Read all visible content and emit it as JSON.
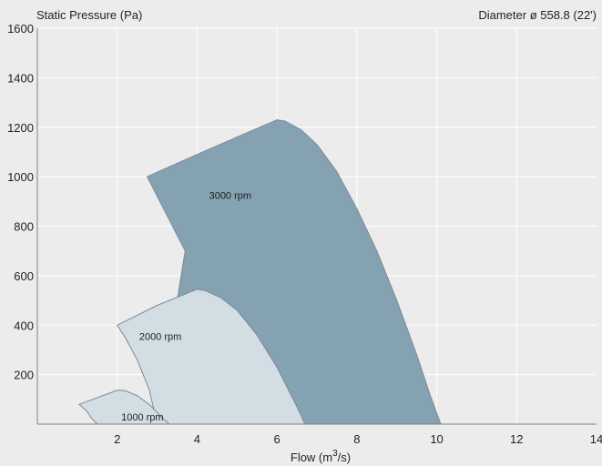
{
  "chart_data": {
    "type": "area",
    "title": "",
    "ylabel": "Static Pressure (Pa)",
    "xlabel_main": "Flow (m",
    "xlabel_sup": "3",
    "xlabel_tail": "/s)",
    "note": "Diameter ø 558.8 (22')",
    "xlim": [
      0,
      14
    ],
    "ylim": [
      0,
      1600
    ],
    "xticks": [
      2,
      4,
      6,
      8,
      10,
      12,
      14
    ],
    "yticks": [
      200,
      400,
      600,
      800,
      1000,
      1200,
      1400,
      1600
    ],
    "grid": true,
    "colors": {
      "background": "#ececec",
      "grid": "#ffffff",
      "axis": "#7f7f7f",
      "dark_fill": "#85a2b3",
      "light_fill": "#d2dde4",
      "outline": "#7d8a93"
    },
    "series": [
      {
        "label": "3000 rpm",
        "fill": "dark",
        "label_at": [
          4.3,
          910
        ],
        "points": [
          [
            2.75,
            1000
          ],
          [
            4.0,
            1090
          ],
          [
            5.0,
            1160
          ],
          [
            6.0,
            1230
          ],
          [
            6.2,
            1225
          ],
          [
            6.6,
            1190
          ],
          [
            7.0,
            1130
          ],
          [
            7.5,
            1020
          ],
          [
            8.0,
            870
          ],
          [
            8.5,
            700
          ],
          [
            9.0,
            500
          ],
          [
            9.5,
            280
          ],
          [
            9.85,
            110
          ],
          [
            10.1,
            0
          ],
          [
            3.1,
            0
          ],
          [
            3.3,
            300
          ],
          [
            3.5,
            500
          ],
          [
            3.7,
            700
          ]
        ]
      },
      {
        "label": "2000 rpm",
        "fill": "light",
        "label_at": [
          2.55,
          340
        ],
        "points": [
          [
            2.0,
            400
          ],
          [
            3.0,
            480
          ],
          [
            4.0,
            545
          ],
          [
            4.2,
            540
          ],
          [
            4.6,
            510
          ],
          [
            5.0,
            460
          ],
          [
            5.5,
            360
          ],
          [
            6.0,
            230
          ],
          [
            6.5,
            70
          ],
          [
            6.7,
            0
          ],
          [
            3.0,
            0
          ],
          [
            2.8,
            140
          ],
          [
            2.5,
            260
          ],
          [
            2.2,
            350
          ]
        ]
      },
      {
        "label": "1000 rpm",
        "fill": "light",
        "label_at": [
          2.1,
          15
        ],
        "points": [
          [
            1.05,
            80
          ],
          [
            2.0,
            137
          ],
          [
            2.2,
            135
          ],
          [
            2.5,
            115
          ],
          [
            2.8,
            80
          ],
          [
            3.1,
            30
          ],
          [
            3.3,
            0
          ],
          [
            1.5,
            0
          ],
          [
            1.35,
            25
          ],
          [
            1.25,
            50
          ]
        ]
      }
    ]
  }
}
